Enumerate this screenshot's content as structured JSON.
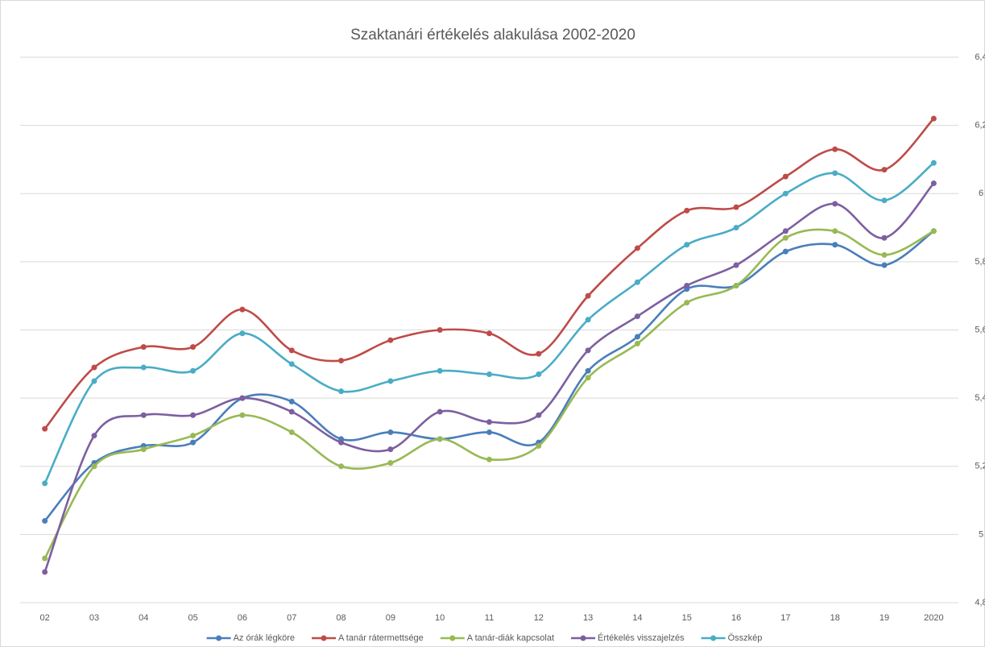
{
  "chart_data": {
    "type": "line",
    "title": "Szaktanári értékelés alakulása 2002-2020",
    "categories": [
      "02",
      "03",
      "04",
      "05",
      "06",
      "07",
      "08",
      "09",
      "10",
      "11",
      "12",
      "13",
      "14",
      "15",
      "16",
      "17",
      "18",
      "19",
      "2020"
    ],
    "series": [
      {
        "name": "Az órák légköre",
        "color": "#4a7ebb",
        "values": [
          5.04,
          5.21,
          5.26,
          5.27,
          5.4,
          5.39,
          5.28,
          5.3,
          5.28,
          5.3,
          5.27,
          5.48,
          5.58,
          5.72,
          5.73,
          5.83,
          5.85,
          5.79,
          5.89
        ]
      },
      {
        "name": "A tanár rátermettsége",
        "color": "#be4b48",
        "values": [
          5.31,
          5.49,
          5.55,
          5.55,
          5.66,
          5.54,
          5.51,
          5.57,
          5.6,
          5.59,
          5.53,
          5.7,
          5.84,
          5.95,
          5.96,
          6.05,
          6.13,
          6.07,
          6.22
        ]
      },
      {
        "name": "A tanár-diák kapcsolat",
        "color": "#98b954",
        "values": [
          4.93,
          5.2,
          5.25,
          5.29,
          5.35,
          5.3,
          5.2,
          5.21,
          5.28,
          5.22,
          5.26,
          5.46,
          5.56,
          5.68,
          5.73,
          5.87,
          5.89,
          5.82,
          5.89
        ]
      },
      {
        "name": "Értékelés visszajelzés",
        "color": "#7d5fa0",
        "values": [
          4.89,
          5.29,
          5.35,
          5.35,
          5.4,
          5.36,
          5.27,
          5.25,
          5.36,
          5.33,
          5.35,
          5.54,
          5.64,
          5.73,
          5.79,
          5.89,
          5.97,
          5.87,
          6.03
        ]
      },
      {
        "name": "Összkép",
        "color": "#4aacc5",
        "values": [
          5.15,
          5.45,
          5.49,
          5.48,
          5.59,
          5.5,
          5.42,
          5.45,
          5.48,
          5.47,
          5.47,
          5.63,
          5.74,
          5.85,
          5.9,
          6.0,
          6.06,
          5.98,
          6.09
        ]
      }
    ],
    "ylim": [
      4.8,
      6.4
    ],
    "yticks": [
      {
        "value": 4.8,
        "label": "4,8"
      },
      5,
      {
        "value": 5.2,
        "label": "5,2"
      },
      {
        "value": 5.4,
        "label": "5,4"
      },
      {
        "value": 5.6,
        "label": "5,6"
      },
      {
        "value": 5.8,
        "label": "5,8"
      },
      6,
      {
        "value": 6.2,
        "label": "6,2"
      },
      {
        "value": 6.4,
        "label": "6,4"
      }
    ],
    "y_axis_side": "right",
    "grid": true,
    "legend": "bottom"
  }
}
